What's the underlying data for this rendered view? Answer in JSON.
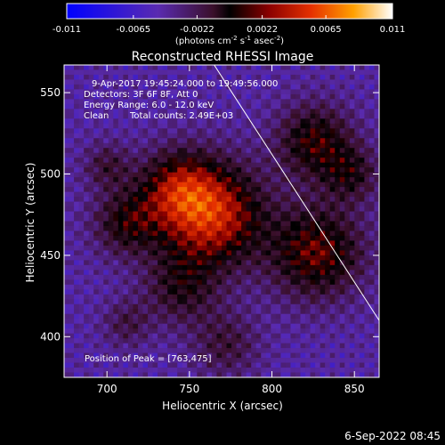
{
  "chart_data": {
    "type": "heatmap",
    "title": "Reconstructed RHESSI Image",
    "xlabel": "Heliocentric X (arcsec)",
    "ylabel": "Heliocentric Y (arcsec)",
    "xlim": [
      674,
      865
    ],
    "ylim": [
      375,
      567
    ],
    "xticks": [
      700,
      750,
      800,
      850
    ],
    "yticks": [
      400,
      450,
      500,
      550
    ],
    "colorbar": {
      "ticks": [
        "-0.011",
        "-0.0065",
        "-0.0022",
        "0.0022",
        "0.0065",
        "0.011"
      ],
      "range": [
        -0.011,
        0.011
      ],
      "unit_base": "(photons cm",
      "unit_exp1": "-2",
      "unit_mid": " s",
      "unit_exp2": "-1",
      "unit_mid2": " asec",
      "unit_exp3": "-2",
      "unit_end": ")"
    },
    "annotations": {
      "time_range": "9-Apr-2017 19:45:24.000 to 19:49:56.000",
      "detectors": "Detectors: 3F 6F 8F, Att 0",
      "energy": "Energy Range: 6.0 - 12.0 keV",
      "clean": "Clean",
      "total_counts": "Total counts: 2.49E+03",
      "peak": "Position of Peak = [763,475]"
    },
    "peak": [
      763,
      475
    ],
    "limb_line": [
      [
        765,
        567
      ],
      [
        865,
        410
      ]
    ],
    "sources": [
      {
        "x": 763,
        "y": 475,
        "amp": 0.0105,
        "sigma": 22
      },
      {
        "x": 742,
        "y": 492,
        "amp": 0.006,
        "sigma": 16
      },
      {
        "x": 712,
        "y": 470,
        "amp": 0.0055,
        "sigma": 14
      },
      {
        "x": 700,
        "y": 505,
        "amp": 0.0035,
        "sigma": 10
      },
      {
        "x": 827,
        "y": 452,
        "amp": 0.0075,
        "sigma": 20
      },
      {
        "x": 826,
        "y": 520,
        "amp": 0.0065,
        "sigma": 16
      },
      {
        "x": 848,
        "y": 500,
        "amp": 0.0045,
        "sigma": 12
      },
      {
        "x": 745,
        "y": 430,
        "amp": 0.0045,
        "sigma": 16
      },
      {
        "x": 772,
        "y": 395,
        "amp": 0.0035,
        "sigma": 14
      },
      {
        "x": 712,
        "y": 408,
        "amp": 0.003,
        "sigma": 10
      }
    ],
    "baseline": -0.006
  },
  "footer_date": "6-Sep-2022 08:45"
}
